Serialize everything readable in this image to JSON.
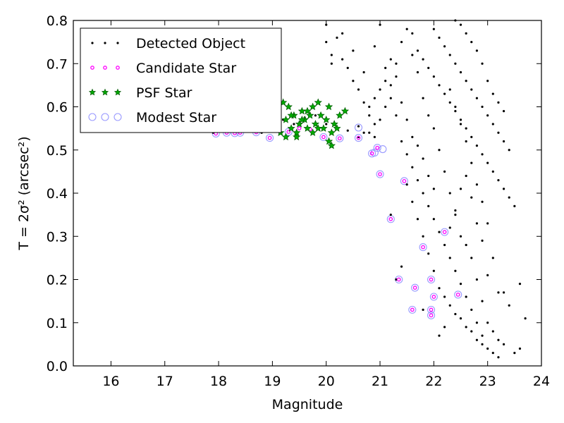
{
  "chart_data": {
    "type": "scatter",
    "xlabel": "Magnitude",
    "ylabel": "T = 2σ² (arcsec²)",
    "xlim": [
      15.3,
      24
    ],
    "ylim": [
      0,
      0.8
    ],
    "xticks": [
      "16",
      "17",
      "18",
      "19",
      "20",
      "21",
      "22",
      "23",
      "24"
    ],
    "yticks": [
      "0.0",
      "0.1",
      "0.2",
      "0.3",
      "0.4",
      "0.5",
      "0.6",
      "0.7",
      "0.8"
    ],
    "grid": false,
    "legend_position": "top-left",
    "colors": {
      "detected": "#000000",
      "candidate": "#ff00ff",
      "psf_fill": "#00aa00",
      "psf_edge": "#005500",
      "modest": "#9999ff"
    },
    "series": [
      {
        "name": "Detected Object",
        "marker": "dot",
        "points": [
          [
            17.9,
            0.54
          ],
          [
            18.1,
            0.545
          ],
          [
            18.3,
            0.542
          ],
          [
            18.5,
            0.548
          ],
          [
            18.8,
            0.54
          ],
          [
            19.0,
            0.55
          ],
          [
            19.2,
            0.57
          ],
          [
            19.4,
            0.56
          ],
          [
            19.6,
            0.575
          ],
          [
            19.8,
            0.58
          ],
          [
            20.0,
            0.56
          ],
          [
            20.2,
            0.55
          ],
          [
            20.4,
            0.545
          ],
          [
            20.6,
            0.555
          ],
          [
            20.8,
            0.54
          ],
          [
            20.9,
            0.53
          ],
          [
            21.0,
            0.57
          ],
          [
            21.1,
            0.6
          ],
          [
            21.2,
            0.65
          ],
          [
            21.3,
            0.7
          ],
          [
            21.4,
            0.75
          ],
          [
            21.5,
            0.78
          ],
          [
            21.6,
            0.72
          ],
          [
            21.7,
            0.68
          ],
          [
            21.8,
            0.62
          ],
          [
            21.9,
            0.58
          ],
          [
            22.0,
            0.55
          ],
          [
            22.1,
            0.5
          ],
          [
            22.2,
            0.45
          ],
          [
            22.3,
            0.4
          ],
          [
            22.4,
            0.35
          ],
          [
            22.5,
            0.3
          ],
          [
            22.6,
            0.28
          ],
          [
            22.7,
            0.25
          ],
          [
            22.8,
            0.2
          ],
          [
            22.9,
            0.15
          ],
          [
            23.0,
            0.1
          ],
          [
            23.1,
            0.08
          ],
          [
            23.2,
            0.06
          ],
          [
            23.3,
            0.05
          ],
          [
            17.4,
            0.78
          ],
          [
            20.0,
            0.75
          ],
          [
            20.1,
            0.7
          ],
          [
            20.3,
            0.77
          ],
          [
            20.5,
            0.73
          ],
          [
            20.7,
            0.68
          ],
          [
            20.9,
            0.74
          ],
          [
            21.0,
            0.79
          ],
          [
            21.1,
            0.66
          ],
          [
            21.2,
            0.62
          ],
          [
            21.3,
            0.58
          ],
          [
            21.4,
            0.52
          ],
          [
            21.5,
            0.49
          ],
          [
            21.6,
            0.46
          ],
          [
            21.7,
            0.43
          ],
          [
            21.8,
            0.4
          ],
          [
            21.9,
            0.37
          ],
          [
            22.0,
            0.34
          ],
          [
            22.1,
            0.31
          ],
          [
            22.2,
            0.28
          ],
          [
            22.3,
            0.25
          ],
          [
            22.4,
            0.22
          ],
          [
            22.5,
            0.19
          ],
          [
            22.6,
            0.16
          ],
          [
            22.7,
            0.13
          ],
          [
            22.8,
            0.1
          ],
          [
            22.9,
            0.07
          ],
          [
            23.0,
            0.04
          ],
          [
            23.1,
            0.03
          ],
          [
            23.2,
            0.02
          ],
          [
            22.0,
            0.78
          ],
          [
            22.1,
            0.76
          ],
          [
            22.2,
            0.74
          ],
          [
            22.3,
            0.72
          ],
          [
            22.4,
            0.7
          ],
          [
            22.5,
            0.68
          ],
          [
            22.6,
            0.66
          ],
          [
            22.7,
            0.64
          ],
          [
            22.8,
            0.62
          ],
          [
            22.9,
            0.6
          ],
          [
            23.0,
            0.58
          ],
          [
            23.1,
            0.56
          ],
          [
            23.2,
            0.54
          ],
          [
            23.3,
            0.52
          ],
          [
            23.4,
            0.5
          ],
          [
            21.6,
            0.77
          ],
          [
            21.7,
            0.73
          ],
          [
            21.8,
            0.71
          ],
          [
            21.9,
            0.69
          ],
          [
            22.0,
            0.67
          ],
          [
            22.1,
            0.65
          ],
          [
            22.2,
            0.63
          ],
          [
            22.3,
            0.61
          ],
          [
            22.4,
            0.59
          ],
          [
            22.5,
            0.57
          ],
          [
            22.6,
            0.55
          ],
          [
            22.7,
            0.53
          ],
          [
            22.8,
            0.51
          ],
          [
            22.9,
            0.49
          ],
          [
            23.0,
            0.47
          ],
          [
            23.1,
            0.45
          ],
          [
            23.2,
            0.43
          ],
          [
            23.3,
            0.41
          ],
          [
            23.4,
            0.39
          ],
          [
            23.5,
            0.37
          ],
          [
            22.1,
            0.18
          ],
          [
            22.2,
            0.16
          ],
          [
            22.3,
            0.14
          ],
          [
            22.4,
            0.12
          ],
          [
            22.5,
            0.11
          ],
          [
            22.6,
            0.09
          ],
          [
            22.7,
            0.08
          ],
          [
            22.8,
            0.06
          ],
          [
            22.9,
            0.05
          ],
          [
            23.5,
            0.03
          ],
          [
            23.6,
            0.04
          ],
          [
            23.7,
            0.11
          ],
          [
            23.6,
            0.19
          ],
          [
            23.4,
            0.14
          ],
          [
            23.3,
            0.17
          ],
          [
            23.2,
            0.17
          ],
          [
            23.1,
            0.25
          ],
          [
            23.0,
            0.33
          ],
          [
            22.9,
            0.38
          ],
          [
            22.8,
            0.42
          ],
          [
            22.7,
            0.47
          ],
          [
            22.6,
            0.52
          ],
          [
            22.5,
            0.56
          ],
          [
            22.4,
            0.6
          ],
          [
            22.3,
            0.64
          ],
          [
            21.8,
            0.3
          ],
          [
            21.9,
            0.26
          ],
          [
            22.0,
            0.22
          ],
          [
            21.7,
            0.34
          ],
          [
            21.6,
            0.38
          ],
          [
            21.5,
            0.42
          ],
          [
            21.4,
            0.23
          ],
          [
            21.3,
            0.2
          ],
          [
            21.2,
            0.35
          ],
          [
            21.8,
            0.13
          ],
          [
            22.1,
            0.07
          ],
          [
            22.2,
            0.09
          ],
          [
            22.3,
            0.32
          ],
          [
            22.4,
            0.36
          ],
          [
            22.5,
            0.41
          ],
          [
            22.6,
            0.44
          ],
          [
            22.7,
            0.39
          ],
          [
            22.8,
            0.33
          ],
          [
            22.9,
            0.29
          ],
          [
            23.0,
            0.21
          ],
          [
            20.6,
            0.53
          ],
          [
            20.7,
            0.54
          ],
          [
            20.8,
            0.6
          ],
          [
            20.9,
            0.62
          ],
          [
            21.0,
            0.64
          ],
          [
            21.1,
            0.69
          ],
          [
            21.2,
            0.71
          ],
          [
            21.3,
            0.67
          ],
          [
            21.4,
            0.61
          ],
          [
            21.5,
            0.57
          ],
          [
            21.6,
            0.53
          ],
          [
            21.7,
            0.51
          ],
          [
            21.8,
            0.48
          ],
          [
            21.9,
            0.44
          ],
          [
            22.0,
            0.41
          ],
          [
            20.0,
            0.79
          ],
          [
            20.1,
            0.72
          ],
          [
            20.2,
            0.76
          ],
          [
            20.3,
            0.71
          ],
          [
            20.4,
            0.69
          ],
          [
            20.5,
            0.66
          ],
          [
            20.6,
            0.64
          ],
          [
            20.7,
            0.61
          ],
          [
            20.8,
            0.58
          ],
          [
            20.9,
            0.56
          ],
          [
            23.3,
            0.59
          ],
          [
            23.2,
            0.61
          ],
          [
            23.1,
            0.63
          ],
          [
            23.0,
            0.66
          ],
          [
            22.9,
            0.7
          ],
          [
            22.8,
            0.73
          ],
          [
            22.7,
            0.75
          ],
          [
            22.6,
            0.77
          ],
          [
            22.5,
            0.79
          ],
          [
            22.4,
            0.8
          ]
        ]
      },
      {
        "name": "Candidate Star",
        "marker": "small-ring",
        "points": [
          [
            17.95,
            0.538
          ],
          [
            18.15,
            0.54
          ],
          [
            18.3,
            0.539
          ],
          [
            18.4,
            0.54
          ],
          [
            18.7,
            0.541
          ],
          [
            18.95,
            0.528
          ],
          [
            19.1,
            0.545
          ],
          [
            19.3,
            0.542
          ],
          [
            19.5,
            0.55
          ],
          [
            19.7,
            0.548
          ],
          [
            19.95,
            0.53
          ],
          [
            20.25,
            0.527
          ],
          [
            20.6,
            0.528
          ],
          [
            20.85,
            0.492
          ],
          [
            20.95,
            0.505
          ],
          [
            21.0,
            0.444
          ],
          [
            21.45,
            0.428
          ],
          [
            21.2,
            0.34
          ],
          [
            21.8,
            0.275
          ],
          [
            22.2,
            0.31
          ],
          [
            21.95,
            0.2
          ],
          [
            21.35,
            0.2
          ],
          [
            21.65,
            0.181
          ],
          [
            22.0,
            0.16
          ],
          [
            22.45,
            0.165
          ],
          [
            21.95,
            0.13
          ],
          [
            21.6,
            0.13
          ],
          [
            21.95,
            0.117
          ]
        ]
      },
      {
        "name": "PSF Star",
        "marker": "star",
        "points": [
          [
            19.05,
            0.56
          ],
          [
            19.1,
            0.59
          ],
          [
            19.15,
            0.54
          ],
          [
            19.2,
            0.61
          ],
          [
            19.25,
            0.57
          ],
          [
            19.3,
            0.6
          ],
          [
            19.35,
            0.55
          ],
          [
            19.4,
            0.58
          ],
          [
            19.45,
            0.53
          ],
          [
            19.5,
            0.56
          ],
          [
            19.55,
            0.59
          ],
          [
            19.6,
            0.57
          ],
          [
            19.65,
            0.55
          ],
          [
            19.7,
            0.58
          ],
          [
            19.75,
            0.6
          ],
          [
            19.8,
            0.56
          ],
          [
            19.85,
            0.61
          ],
          [
            19.9,
            0.58
          ],
          [
            19.95,
            0.55
          ],
          [
            20.0,
            0.57
          ],
          [
            20.05,
            0.6
          ],
          [
            20.1,
            0.54
          ],
          [
            20.15,
            0.56
          ],
          [
            20.2,
            0.55
          ],
          [
            20.25,
            0.58
          ],
          [
            20.35,
            0.59
          ],
          [
            20.05,
            0.52
          ],
          [
            20.1,
            0.51
          ],
          [
            19.45,
            0.54
          ],
          [
            19.65,
            0.59
          ],
          [
            19.75,
            0.54
          ],
          [
            19.55,
            0.57
          ],
          [
            19.85,
            0.55
          ],
          [
            19.25,
            0.53
          ],
          [
            19.35,
            0.58
          ]
        ]
      },
      {
        "name": "Modest Star",
        "marker": "ring",
        "points": [
          [
            17.95,
            0.538
          ],
          [
            18.15,
            0.54
          ],
          [
            18.3,
            0.539
          ],
          [
            18.4,
            0.54
          ],
          [
            18.7,
            0.541
          ],
          [
            18.95,
            0.528
          ],
          [
            19.3,
            0.542
          ],
          [
            19.95,
            0.53
          ],
          [
            20.25,
            0.527
          ],
          [
            20.6,
            0.528
          ],
          [
            20.6,
            0.552
          ],
          [
            20.85,
            0.492
          ],
          [
            20.9,
            0.494
          ],
          [
            20.95,
            0.505
          ],
          [
            21.05,
            0.502
          ],
          [
            21.0,
            0.444
          ],
          [
            21.45,
            0.428
          ],
          [
            21.2,
            0.34
          ],
          [
            21.8,
            0.275
          ],
          [
            22.2,
            0.31
          ],
          [
            21.95,
            0.2
          ],
          [
            21.35,
            0.2
          ],
          [
            21.65,
            0.181
          ],
          [
            22.0,
            0.16
          ],
          [
            22.45,
            0.165
          ],
          [
            21.95,
            0.13
          ],
          [
            21.6,
            0.13
          ],
          [
            21.95,
            0.117
          ]
        ]
      }
    ]
  }
}
